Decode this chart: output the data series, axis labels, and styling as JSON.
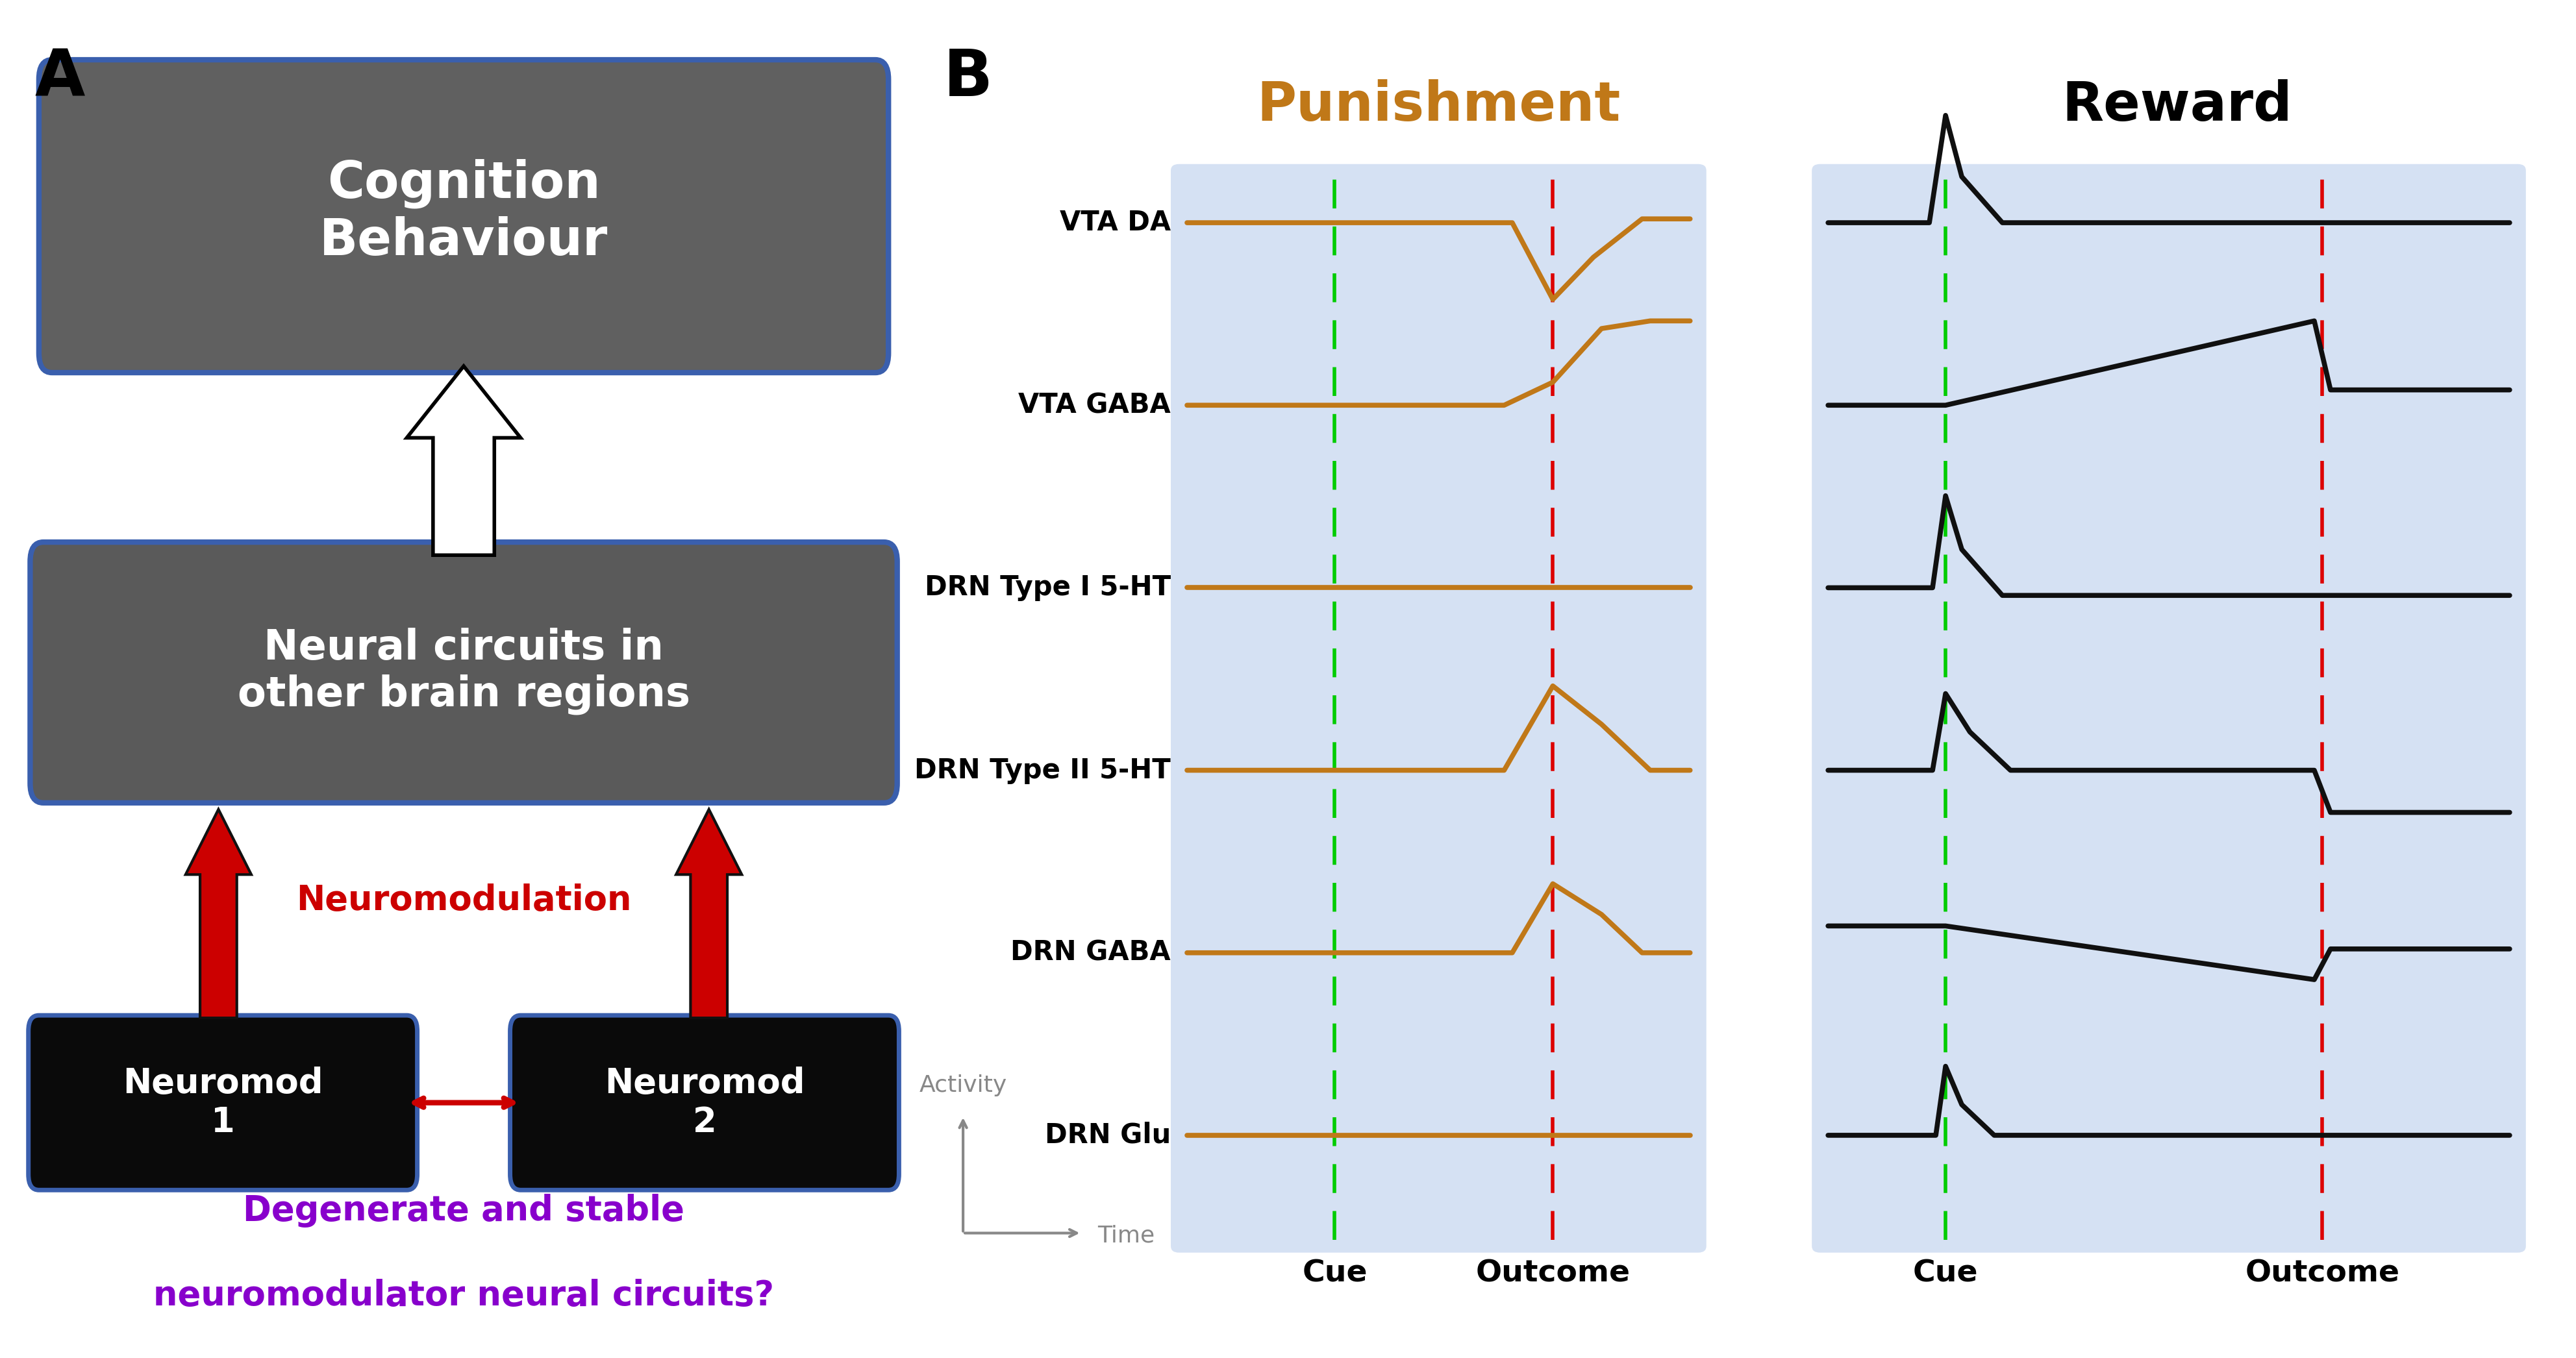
{
  "panel_a": {
    "box1_text": "Cognition\nBehaviour",
    "box2_text": "Neural circuits in\nother brain regions",
    "box3_text_left": "Neuromod\n1",
    "box3_text_right": "Neuromod\n2",
    "neuromod_label": "Neuromodulation",
    "bottom_text_line1": "Degenerate and stable",
    "bottom_text_line2": "neuromodulator neural circuits?",
    "box1_bg": "#606060",
    "box2_bg": "#5a5a5a",
    "box_border": "#3a5fad",
    "box3_bg": "#0a0a0a",
    "box3_border": "#3a5fad",
    "arrow_red": "#cc0000",
    "arrow_red_outline": "#550000",
    "text_purple": "#8800cc",
    "text_neuromod": "#cc0000"
  },
  "panel_b": {
    "punishment_title": "Punishment",
    "reward_title": "Reward",
    "orange": "#c07818",
    "black": "#101010",
    "bg_color": "#c8d8f0",
    "row_labels": [
      "VTA DA",
      "VTA GABA",
      "DRN Type I 5-HT",
      "DRN Type II 5-HT",
      "DRN GABA",
      "DRN Glu"
    ],
    "cue_label": "Cue",
    "outcome_label": "Outcome",
    "activity_label": "Activity",
    "time_label": "Time",
    "green_dash": "#00cc00",
    "red_dash": "#dd0000"
  }
}
